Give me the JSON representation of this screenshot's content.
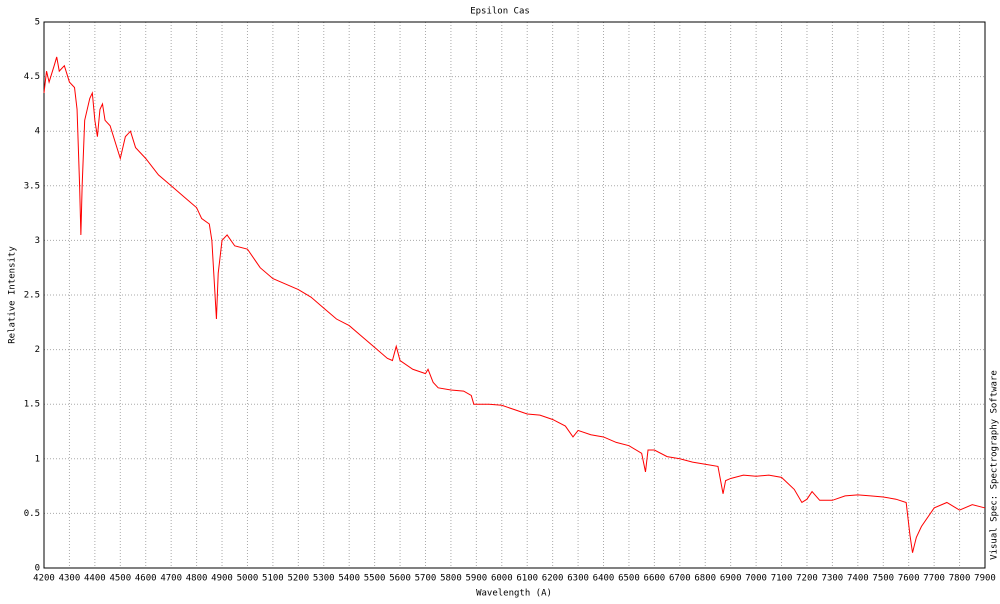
{
  "chart_data": {
    "type": "line",
    "title": "Epsilon Cas",
    "x_label": "Wavelength (A)",
    "y_label": "Relative Intensity",
    "credit": "Visual Spec: Spectrography Software",
    "x": [
      4200,
      4210,
      4220,
      4240,
      4250,
      4260,
      4280,
      4300,
      4320,
      4330,
      4340,
      4345,
      4350,
      4360,
      4380,
      4390,
      4400,
      4410,
      4420,
      4430,
      4440,
      4460,
      4480,
      4500,
      4520,
      4540,
      4560,
      4600,
      4650,
      4700,
      4750,
      4800,
      4820,
      4850,
      4860,
      4870,
      4878,
      4885,
      4900,
      4920,
      4950,
      5000,
      5050,
      5100,
      5150,
      5200,
      5250,
      5300,
      5350,
      5400,
      5450,
      5500,
      5550,
      5570,
      5585,
      5600,
      5650,
      5700,
      5710,
      5730,
      5750,
      5800,
      5850,
      5880,
      5890,
      5950,
      6000,
      6050,
      6100,
      6150,
      6200,
      6250,
      6280,
      6300,
      6350,
      6400,
      6450,
      6500,
      6550,
      6565,
      6575,
      6600,
      6650,
      6700,
      6750,
      6800,
      6850,
      6870,
      6880,
      6900,
      6950,
      7000,
      7050,
      7100,
      7150,
      7180,
      7200,
      7220,
      7250,
      7300,
      7350,
      7400,
      7450,
      7500,
      7550,
      7590,
      7605,
      7615,
      7630,
      7650,
      7700,
      7750,
      7800,
      7850,
      7900
    ],
    "series": [
      {
        "color": "#ff0000",
        "values": [
          4.35,
          4.55,
          4.45,
          4.6,
          4.68,
          4.55,
          4.6,
          4.45,
          4.4,
          4.2,
          3.5,
          3.05,
          3.5,
          4.1,
          4.3,
          4.35,
          4.1,
          3.95,
          4.2,
          4.25,
          4.1,
          4.05,
          3.9,
          3.75,
          3.95,
          4.0,
          3.85,
          3.75,
          3.6,
          3.5,
          3.4,
          3.3,
          3.2,
          3.15,
          3.0,
          2.6,
          2.28,
          2.7,
          3.0,
          3.05,
          2.95,
          2.92,
          2.75,
          2.65,
          2.6,
          2.55,
          2.48,
          2.38,
          2.28,
          2.22,
          2.12,
          2.02,
          1.92,
          1.9,
          2.03,
          1.9,
          1.82,
          1.78,
          1.82,
          1.7,
          1.65,
          1.63,
          1.62,
          1.58,
          1.5,
          1.5,
          1.49,
          1.45,
          1.41,
          1.4,
          1.36,
          1.3,
          1.2,
          1.26,
          1.22,
          1.2,
          1.15,
          1.12,
          1.05,
          0.88,
          1.08,
          1.08,
          1.02,
          1.0,
          0.97,
          0.95,
          0.93,
          0.68,
          0.8,
          0.82,
          0.85,
          0.84,
          0.85,
          0.83,
          0.72,
          0.6,
          0.63,
          0.7,
          0.62,
          0.62,
          0.66,
          0.67,
          0.66,
          0.65,
          0.63,
          0.6,
          0.3,
          0.14,
          0.28,
          0.38,
          0.55,
          0.6,
          0.53,
          0.58,
          0.55
        ]
      }
    ],
    "xlim": [
      4200,
      7900
    ],
    "ylim": [
      0,
      5
    ],
    "xticks": [
      4200,
      4300,
      4400,
      4500,
      4600,
      4700,
      4800,
      4900,
      5000,
      5100,
      5200,
      5300,
      5400,
      5500,
      5600,
      5700,
      5800,
      5900,
      6000,
      6100,
      6200,
      6300,
      6400,
      6500,
      6600,
      6700,
      6800,
      6900,
      7000,
      7100,
      7200,
      7300,
      7400,
      7500,
      7600,
      7700,
      7800,
      7900
    ],
    "yticks": [
      0,
      0.5,
      1,
      1.5,
      2,
      2.5,
      3,
      3.5,
      4,
      4.5,
      5
    ],
    "grid": true
  }
}
